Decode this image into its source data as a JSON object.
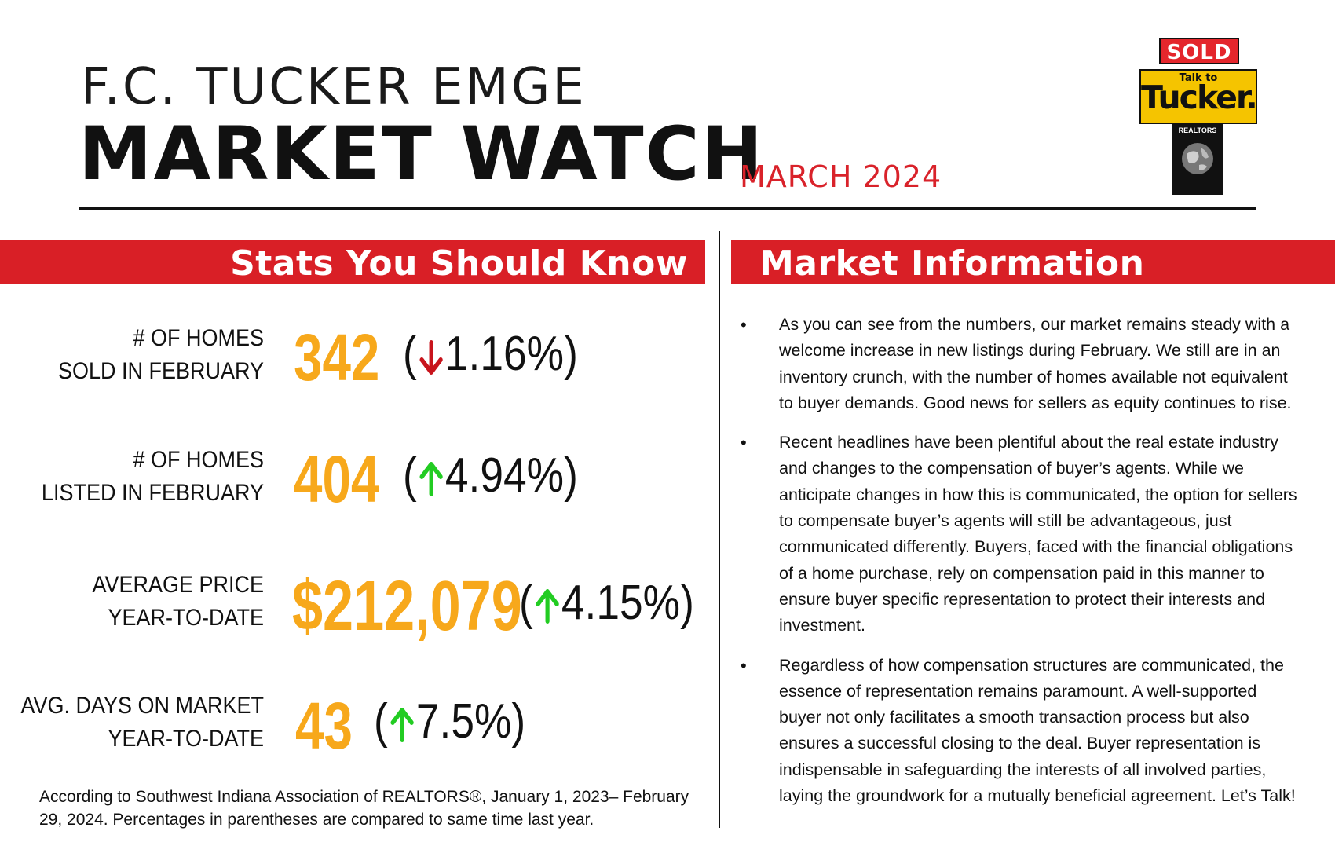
{
  "header": {
    "brand": "F.C. TUCKER EMGE",
    "title": "MARKET WATCH",
    "issue_date": "MARCH 2024"
  },
  "logo": {
    "sold": "SOLD",
    "talk": "Talk to",
    "tucker": "Tucker.",
    "realtors": "REALTORS"
  },
  "stats_section": {
    "title": "Stats You Should Know",
    "items": [
      {
        "label_line1": "# OF HOMES",
        "label_line2": "SOLD IN FEBRUARY",
        "value": "342",
        "open": "(",
        "direction": "down",
        "change": "1.16%)",
        "arrow_color": "#c8141c"
      },
      {
        "label_line1": "# OF HOMES",
        "label_line2": "LISTED IN FEBRUARY",
        "value": "404",
        "open": "(",
        "direction": "up",
        "change": "4.94%)",
        "arrow_color": "#22cc22"
      },
      {
        "label_line1": "AVERAGE PRICE",
        "label_line2": "YEAR-TO-DATE",
        "value": "$212,079",
        "open": "(",
        "direction": "up",
        "change": "4.15%)",
        "arrow_color": "#22cc22"
      },
      {
        "label_line1": "AVG. DAYS ON MARKET",
        "label_line2": "YEAR-TO-DATE",
        "value": "43",
        "open": "(",
        "direction": "up",
        "change": "7.5%)",
        "arrow_color": "#22cc22"
      }
    ],
    "footnote": "According to Southwest Indiana Association of REALTORS®, January 1, 2023– February 29, 2024. Percentages in parentheses are compared to same time last year."
  },
  "market_section": {
    "title": "Market Information",
    "bullet_symbol": "•",
    "paragraphs": [
      "As you can see from the numbers, our market remains steady with a welcome increase in new listings during February. We still are in an inventory crunch, with the number of homes available not equivalent to buyer demands. Good news for sellers as equity continues to rise.",
      "Recent headlines have been plentiful about the real estate industry and changes to the compensation of buyer’s agents. While we anticipate changes in how this is communicated, the option for sellers to compensate buyer’s agents will still be advantageous, just communicated differently. Buyers, faced with the financial obligations of a home purchase, rely on compensation paid in this manner to ensure buyer specific representation to protect their interests and investment.",
      "Regardless of how compensation structures are communicated, the essence of representation remains paramount. A well-supported buyer not only facilitates a smooth transaction process but also ensures a successful closing to the deal. Buyer representation is indispensable in safeguarding the interests of all involved parties, laying the groundwork for a mutually beneficial agreement. Let’s Talk!"
    ]
  },
  "colors": {
    "accent_red": "#d91f26",
    "value_orange": "#f7a81b",
    "up_green": "#22cc22",
    "down_red": "#c8141c"
  }
}
